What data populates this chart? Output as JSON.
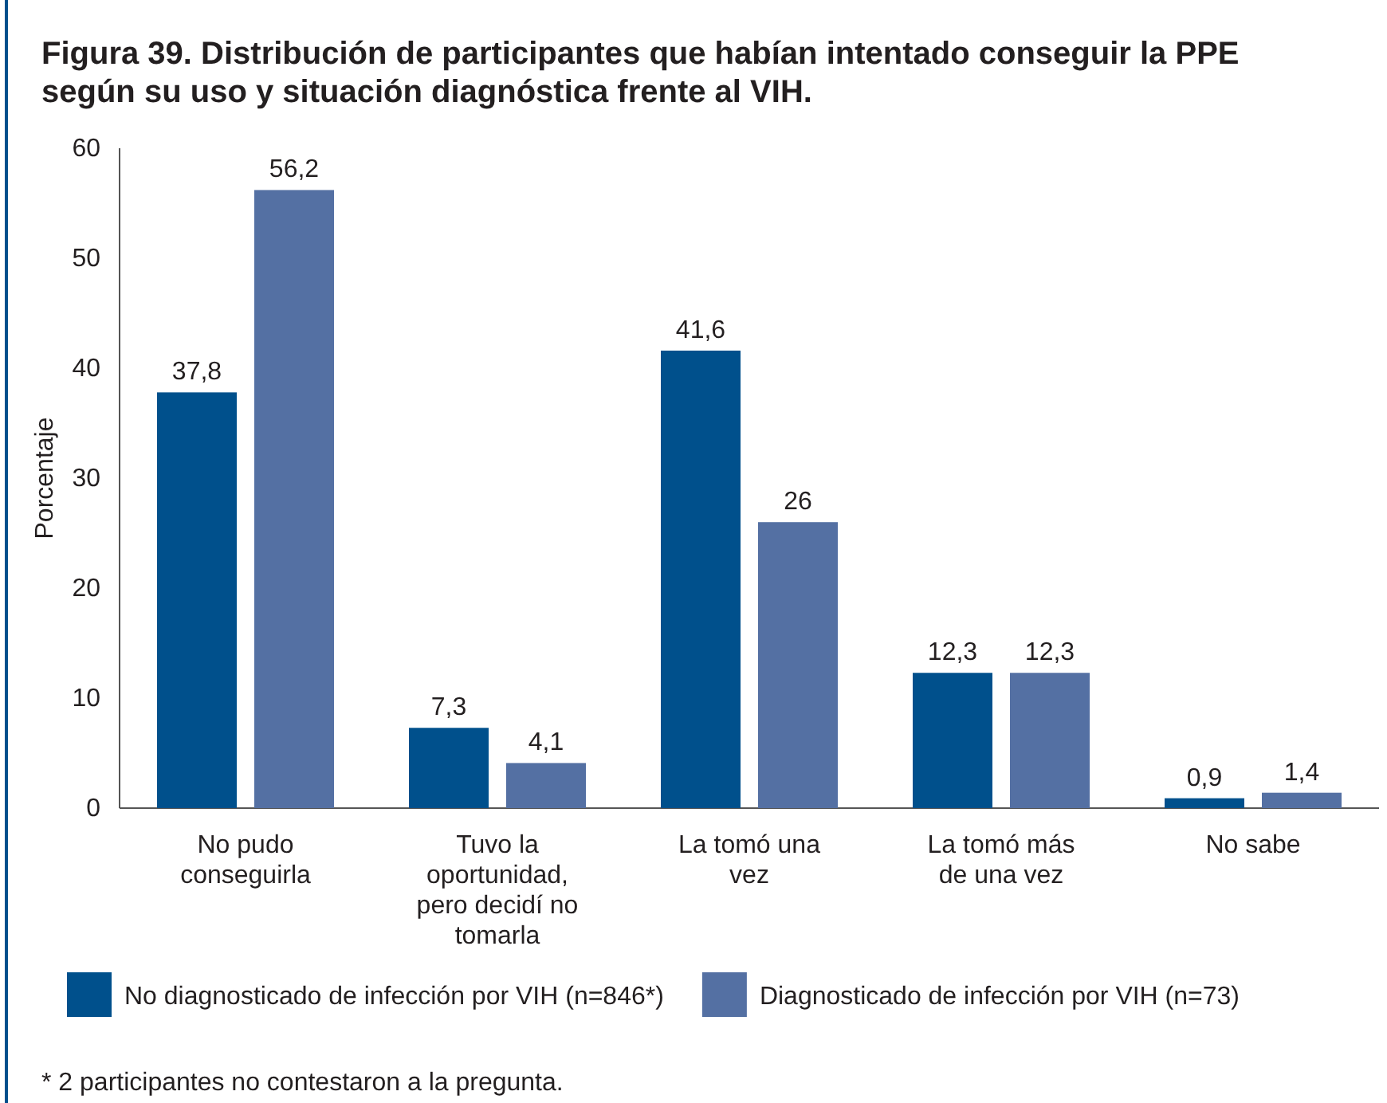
{
  "chart_data": {
    "type": "bar",
    "title": "Figura 39. Distribución de participantes que habían intentado conseguir la PPE según su uso y situación diagnóstica frente al VIH.",
    "ylabel": "Porcentaje",
    "categories": [
      "No pudo conseguirla",
      "Tuvo la oportunidad, pero decidí no tomarla",
      "La tomó una vez",
      "La tomó más de una vez",
      "No sabe"
    ],
    "series": [
      {
        "name": "No diagnosticado de infección por VIH (n=846*)",
        "color": "#00508c",
        "values": [
          37.8,
          7.3,
          41.6,
          12.3,
          0.9
        ],
        "value_labels": [
          "37,8",
          "7,3",
          "41,6",
          "12,3",
          "0,9"
        ]
      },
      {
        "name": "Diagnosticado de infección por VIH (n=73)",
        "color": "#5470a3",
        "values": [
          56.2,
          4.1,
          26,
          12.3,
          1.4
        ],
        "value_labels": [
          "56,2",
          "4,1",
          "26",
          "12,3",
          "1,4"
        ]
      }
    ],
    "ylim": [
      0,
      60
    ],
    "yticks": [
      0,
      10,
      20,
      30,
      40,
      50,
      60
    ],
    "grid": false,
    "legend": "bottom",
    "annotations": [
      "* 2 participantes no contestaron a la pregunta."
    ]
  }
}
